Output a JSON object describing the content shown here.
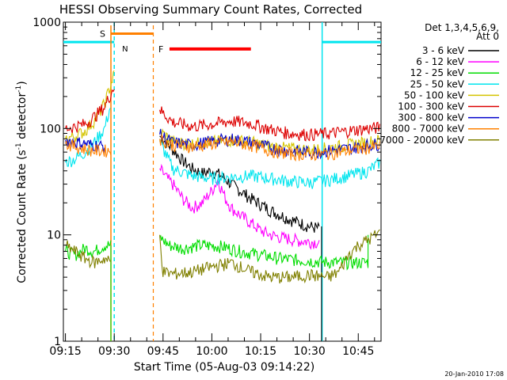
{
  "title": "HESSI Observing Summary Count Rates, Corrected",
  "ylabel_main": "Corrected Count Rate (s",
  "ylabel_sup1": "-1",
  "ylabel_mid": " detector",
  "ylabel_sup2": "-1",
  "ylabel_end": ")",
  "xlabel": "Start Time (05-Aug-03 09:14:22)",
  "timestamp": "20-Jan-2010 17:08",
  "legend": {
    "header1": "Det 1,3,4,5,6,9,",
    "header2": "Att 0",
    "entries": [
      {
        "label": "3 - 6 keV",
        "color": "#000000"
      },
      {
        "label": "6 - 12 keV",
        "color": "#ff00ff"
      },
      {
        "label": "12 - 25 keV",
        "color": "#00dd00"
      },
      {
        "label": "25 - 50 keV",
        "color": "#00e5ee"
      },
      {
        "label": "50 - 100 keV",
        "color": "#d4c400"
      },
      {
        "label": "100 - 300 keV",
        "color": "#dd0000"
      },
      {
        "label": "300 - 800 keV",
        "color": "#0000cc"
      },
      {
        "label": "800 - 7000 keV",
        "color": "#ff8000"
      },
      {
        "label": "7000 - 20000 keV",
        "color": "#808000"
      }
    ]
  },
  "flags": {
    "s_label": "S",
    "n_label": "N",
    "f_label": "F",
    "saa_color": "#ff8000",
    "night_color": "#00e5ee",
    "flare_color": "#ff0000"
  },
  "chart_data": {
    "type": "line",
    "yscale": "log",
    "ylim": [
      1,
      1000
    ],
    "xlim": [
      "09:14:22",
      "10:52:00"
    ],
    "x_ticks": [
      "09:15",
      "09:30",
      "09:45",
      "10:00",
      "10:15",
      "10:30",
      "10:45"
    ],
    "y_ticks": [
      "1",
      "10",
      "100",
      "1000"
    ],
    "series": [
      {
        "name": "3 - 6 keV",
        "color": "#000000",
        "segments": [
          [
            [
              9.2,
              1.0
            ],
            [
              9.45,
              1.0
            ]
          ],
          [
            [
              9.733,
              85
            ],
            [
              9.78,
              70
            ],
            [
              9.85,
              50
            ],
            [
              9.9,
              42
            ],
            [
              9.95,
              38
            ],
            [
              10.0,
              40
            ],
            [
              10.05,
              36
            ],
            [
              10.1,
              30
            ],
            [
              10.2,
              22
            ],
            [
              10.3,
              17
            ],
            [
              10.4,
              14
            ],
            [
              10.5,
              12
            ],
            [
              10.55,
              11.5
            ]
          ],
          [
            [
              10.562,
              1.0
            ],
            [
              10.562,
              12
            ]
          ]
        ]
      },
      {
        "name": "6 - 12 keV",
        "color": "#ff00ff",
        "segments": [
          [
            [
              9.733,
              42
            ],
            [
              9.77,
              34
            ],
            [
              9.8,
              30
            ],
            [
              9.85,
              22
            ],
            [
              9.9,
              18
            ],
            [
              9.95,
              20
            ],
            [
              10.0,
              26
            ],
            [
              10.03,
              33
            ],
            [
              10.07,
              22
            ],
            [
              10.1,
              18
            ],
            [
              10.15,
              15
            ],
            [
              10.2,
              13
            ],
            [
              10.25,
              11
            ],
            [
              10.3,
              10
            ],
            [
              10.35,
              9.5
            ],
            [
              10.45,
              8.8
            ],
            [
              10.55,
              8.5
            ]
          ]
        ]
      },
      {
        "name": "12 - 25 keV",
        "color": "#00dd00",
        "segments": [
          [
            [
              9.25,
              7.0
            ],
            [
              9.3,
              6.5
            ],
            [
              9.35,
              7.5
            ],
            [
              9.4,
              7.0
            ],
            [
              9.45,
              8.0
            ],
            [
              9.483,
              8.0
            ]
          ],
          [
            [
              9.483,
              1.0
            ],
            [
              9.483,
              8.0
            ]
          ],
          [
            [
              9.733,
              9.5
            ],
            [
              9.78,
              8.0
            ],
            [
              9.85,
              7.5
            ],
            [
              9.95,
              8.0
            ],
            [
              10.05,
              7.8
            ],
            [
              10.15,
              7.0
            ],
            [
              10.25,
              6.5
            ],
            [
              10.35,
              6.0
            ],
            [
              10.45,
              5.8
            ],
            [
              10.55,
              5.6
            ],
            [
              10.65,
              5.5
            ],
            [
              10.75,
              5.5
            ],
            [
              10.8,
              5.5
            ]
          ],
          [
            [
              10.8,
              5.0
            ],
            [
              10.8,
              10.0
            ]
          ]
        ]
      },
      {
        "name": "25 - 50 keV",
        "color": "#00e5ee",
        "segments": [
          [
            [
              9.25,
              48
            ],
            [
              9.3,
              52
            ],
            [
              9.35,
              60
            ],
            [
              9.4,
              75
            ],
            [
              9.45,
              100
            ],
            [
              9.48,
              160
            ]
          ],
          [
            [
              9.733,
              75
            ],
            [
              9.8,
              42
            ],
            [
              9.9,
              36
            ],
            [
              10.0,
              34
            ],
            [
              10.1,
              35
            ],
            [
              10.2,
              36
            ],
            [
              10.3,
              34
            ],
            [
              10.4,
              32
            ],
            [
              10.5,
              31
            ],
            [
              10.6,
              33
            ],
            [
              10.7,
              36
            ],
            [
              10.8,
              40
            ],
            [
              10.86,
              48
            ]
          ]
        ]
      },
      {
        "name": "50 - 100 keV",
        "color": "#d4c400",
        "segments": [
          [
            [
              9.25,
              80
            ],
            [
              9.3,
              85
            ],
            [
              9.35,
              95
            ],
            [
              9.4,
              120
            ],
            [
              9.45,
              170
            ],
            [
              9.5,
              330
            ]
          ],
          [
            [
              9.733,
              95
            ],
            [
              9.8,
              75
            ],
            [
              9.9,
              72
            ],
            [
              10.0,
              75
            ],
            [
              10.1,
              78
            ],
            [
              10.2,
              75
            ],
            [
              10.3,
              68
            ],
            [
              10.4,
              65
            ],
            [
              10.5,
              63
            ],
            [
              10.6,
              66
            ],
            [
              10.7,
              70
            ],
            [
              10.8,
              75
            ],
            [
              10.86,
              78
            ]
          ]
        ]
      },
      {
        "name": "100 - 300 keV",
        "color": "#dd0000",
        "segments": [
          [
            [
              9.25,
              100
            ],
            [
              9.3,
              105
            ],
            [
              9.35,
              110
            ],
            [
              9.4,
              130
            ],
            [
              9.45,
              160
            ],
            [
              9.5,
              250
            ]
          ],
          [
            [
              9.733,
              150
            ],
            [
              9.8,
              115
            ],
            [
              9.9,
              105
            ],
            [
              10.0,
              110
            ],
            [
              10.1,
              118
            ],
            [
              10.2,
              112
            ],
            [
              10.3,
              98
            ],
            [
              10.4,
              90
            ],
            [
              10.5,
              88
            ],
            [
              10.6,
              90
            ],
            [
              10.7,
              95
            ],
            [
              10.8,
              100
            ],
            [
              10.86,
              102
            ]
          ]
        ]
      },
      {
        "name": "300 - 800 keV",
        "color": "#0000cc",
        "segments": [
          [
            [
              9.25,
              78
            ],
            [
              9.35,
              72
            ],
            [
              9.45,
              68
            ]
          ],
          [
            [
              9.733,
              88
            ],
            [
              9.8,
              74
            ],
            [
              9.9,
              70
            ],
            [
              10.0,
              76
            ],
            [
              10.1,
              80
            ],
            [
              10.2,
              74
            ],
            [
              10.3,
              66
            ],
            [
              10.4,
              62
            ],
            [
              10.5,
              60
            ],
            [
              10.6,
              62
            ],
            [
              10.7,
              65
            ],
            [
              10.8,
              70
            ],
            [
              10.86,
              72
            ]
          ]
        ]
      },
      {
        "name": "800 - 7000 keV",
        "color": "#ff8000",
        "segments": [
          [
            [
              9.25,
              72
            ],
            [
              9.3,
              68
            ],
            [
              9.35,
              64
            ],
            [
              9.4,
              62
            ],
            [
              9.483,
              62
            ]
          ],
          [
            [
              9.733,
              80
            ],
            [
              9.8,
              70
            ],
            [
              9.9,
              68
            ],
            [
              10.0,
              72
            ],
            [
              10.1,
              75
            ],
            [
              10.2,
              70
            ],
            [
              10.3,
              62
            ],
            [
              10.4,
              58
            ],
            [
              10.5,
              57
            ],
            [
              10.6,
              58
            ],
            [
              10.7,
              62
            ],
            [
              10.8,
              66
            ],
            [
              10.86,
              68
            ]
          ]
        ]
      },
      {
        "name": "7000 - 20000 keV",
        "color": "#808000",
        "segments": [
          [
            [
              9.25,
              8.0
            ],
            [
              9.3,
              7.0
            ],
            [
              9.35,
              6.0
            ],
            [
              9.4,
              5.5
            ],
            [
              9.45,
              6.0
            ],
            [
              9.483,
              5.5
            ]
          ],
          [
            [
              9.733,
              10
            ],
            [
              9.75,
              4.5
            ],
            [
              9.8,
              4.3
            ],
            [
              9.9,
              4.5
            ],
            [
              10.0,
              5.0
            ],
            [
              10.1,
              5.5
            ],
            [
              10.2,
              4.5
            ],
            [
              10.3,
              4.0
            ],
            [
              10.4,
              4.0
            ],
            [
              10.5,
              4.2
            ],
            [
              10.6,
              4.0
            ],
            [
              10.65,
              4.5
            ],
            [
              10.7,
              6.5
            ],
            [
              10.75,
              8.0
            ],
            [
              10.8,
              9.0
            ],
            [
              10.86,
              10.5
            ]
          ]
        ]
      }
    ],
    "night_intervals": [
      [
        9.0,
        9.5
      ],
      [
        10.565,
        11.0
      ]
    ],
    "saa_interval": [
      9.483,
      9.7
    ],
    "flare_interval": [
      9.783,
      10.2
    ],
    "night_level": 650,
    "saa_level": 780,
    "flare_level": 560
  }
}
